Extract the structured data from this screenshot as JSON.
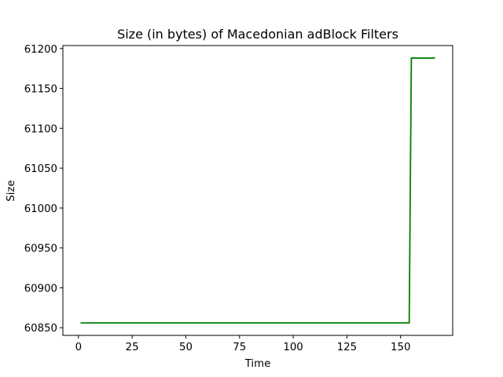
{
  "chart_data": {
    "type": "line",
    "title": "Size (in bytes) of Macedonian adBlock Filters",
    "xlabel": "Time",
    "ylabel": "Size",
    "xlim": [
      -7.25,
      174.25
    ],
    "ylim": [
      60840.4,
      61203.7
    ],
    "xticks": [
      0,
      25,
      50,
      75,
      100,
      125,
      150
    ],
    "xtick_labels": [
      "0",
      "25",
      "50",
      "75",
      "100",
      "125",
      "150"
    ],
    "yticks": [
      60850,
      60900,
      60950,
      61000,
      61050,
      61100,
      61150,
      61200
    ],
    "ytick_labels": [
      "60850",
      "60900",
      "60950",
      "61000",
      "61050",
      "61100",
      "61150",
      "61200"
    ],
    "grid": false,
    "series": [
      {
        "color": "#008000",
        "x": [
          1,
          154,
          155,
          166
        ],
        "y": [
          60856,
          60856,
          61188,
          61188
        ]
      }
    ]
  }
}
